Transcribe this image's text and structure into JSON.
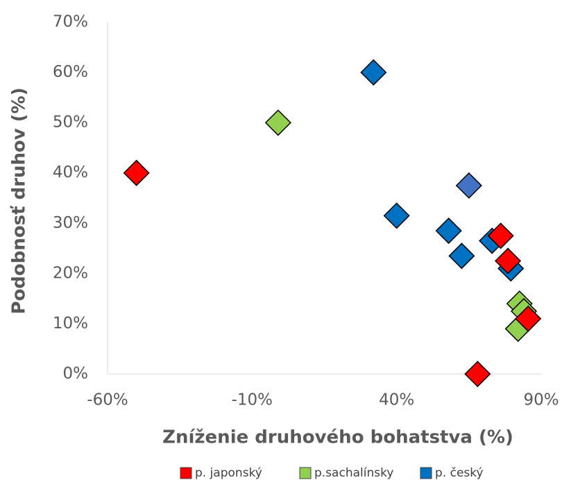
{
  "chart_data": {
    "type": "scatter",
    "x_label": "Zníženie druhového bohatstva (%)",
    "y_label": "Podobnosť druhov (%)",
    "xlim": [
      -60,
      90
    ],
    "xticks": [
      {
        "value": -60,
        "label": "-60%"
      },
      {
        "value": -10,
        "label": "-10%"
      },
      {
        "value": 40,
        "label": "40%"
      },
      {
        "value": 90,
        "label": "90%"
      }
    ],
    "ylim": [
      0,
      70
    ],
    "yticks": [
      {
        "value": 0,
        "label": "0%"
      },
      {
        "value": 10,
        "label": "10%"
      },
      {
        "value": 20,
        "label": "20%"
      },
      {
        "value": 30,
        "label": "30%"
      },
      {
        "value": 40,
        "label": "40%"
      },
      {
        "value": 50,
        "label": "50%"
      },
      {
        "value": 60,
        "label": "60%"
      },
      {
        "value": 70,
        "label": "70%"
      }
    ],
    "grid": false,
    "legend": "bottom",
    "series": [
      {
        "name": "p. japonský",
        "color": "#ff0000",
        "x": [
          -50,
          76,
          78.5,
          85.5,
          68
        ],
        "values": [
          40,
          27.5,
          22.5,
          11,
          0
        ]
      },
      {
        "name": "p.sachalínsky",
        "color": "#92d050",
        "x": [
          -1,
          82.5,
          84,
          82
        ],
        "values": [
          50,
          14,
          12.5,
          9
        ]
      },
      {
        "name": "p. český",
        "color": "#0070c0",
        "x": [
          32,
          40,
          58,
          62.5,
          73,
          79.5,
          65
        ],
        "values": [
          60,
          31.5,
          28.5,
          23.5,
          26.5,
          21,
          37.5
        ],
        "colors": [
          "#0070c0",
          "#0070c0",
          "#0070c0",
          "#0070c0",
          "#0070c0",
          "#0070c0",
          "#4472c4"
        ]
      }
    ]
  }
}
